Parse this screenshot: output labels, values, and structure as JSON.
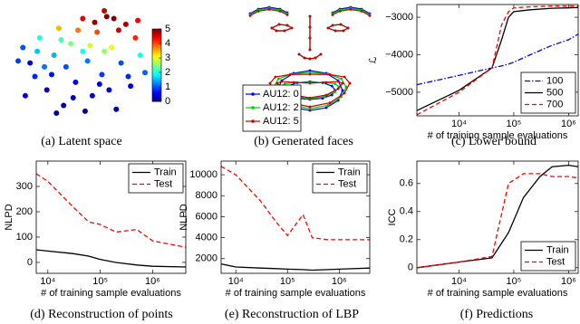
{
  "chart_data": [
    {
      "type": "scatter",
      "caption": "(a) Latent space",
      "colormap": "jet",
      "clim": [
        0,
        5
      ],
      "colorbar_ticks": [
        0,
        1,
        2,
        3,
        4,
        5
      ],
      "x": [
        -2.5,
        -2.2,
        -2.0,
        -1.8,
        -1.5,
        -1.2,
        -1.0,
        -0.8,
        -0.5,
        -0.3,
        0,
        0.2,
        0.4,
        0.6,
        0.8,
        1.0,
        1.2,
        1.4,
        1.6,
        1.8,
        2.0,
        2.2,
        2.4,
        -2.4,
        -1.6,
        -0.7,
        0.1,
        0.9,
        1.5,
        -0.2,
        0.5,
        -1.3,
        1.1,
        2.6,
        -0.9,
        0.3,
        -1.9,
        1.9,
        -0.4,
        0.7,
        -2.7,
        1.3,
        0.0,
        -1.1,
        2.3,
        0.9
      ],
      "y": [
        1.0,
        0.2,
        -0.5,
        1.5,
        -1.2,
        0.6,
        2.0,
        -2.0,
        1.2,
        -0.8,
        2.5,
        0.3,
        -1.5,
        1.8,
        -0.4,
        2.6,
        1.0,
        -2.2,
        0.2,
        2.2,
        -1.0,
        1.5,
        0.6,
        -1.5,
        0.0,
        0.0,
        -2.3,
        0.8,
        1.9,
        1.9,
        2.3,
        -0.4,
        -1.2,
        -0.3,
        1.4,
        1.1,
        0.8,
        -0.5,
        -1.6,
        -0.9,
        0.3,
        2.5,
        0.8,
        -2.4,
        2.4,
        2.9
      ],
      "c": [
        1,
        0.5,
        0.8,
        2,
        0.3,
        1.5,
        3.5,
        0.2,
        2.5,
        0.6,
        4.5,
        1.2,
        0.4,
        4,
        0.9,
        5,
        3,
        0.2,
        1,
        4.8,
        0.5,
        4.2,
        2,
        0.6,
        1.2,
        1,
        0.1,
        2.6,
        4.6,
        3.8,
        4.9,
        0.7,
        0.4,
        1.1,
        2.2,
        2.9,
        1.6,
        0.8,
        0.3,
        0.5,
        0.9,
        5,
        2.0,
        0.2,
        4.4,
        4.7
      ]
    },
    {
      "type": "diagram",
      "caption": "(b) Generated faces",
      "series": [
        {
          "name": "AU12: 0",
          "color": "#0000ff"
        },
        {
          "name": "AU12: 2",
          "color": "#00cc00"
        },
        {
          "name": "AU12: 5",
          "color": "#cc0000"
        }
      ]
    },
    {
      "type": "line",
      "caption": "(c) Lower bound",
      "xlabel": "# of training sample evaluations",
      "ylabel": "ℒ",
      "xscale": "log",
      "legend": "lower right",
      "xlim": [
        1700,
        1500000
      ],
      "xticks": [
        {
          "value": 10000,
          "label": "10⁴"
        },
        {
          "value": 100000,
          "label": "10⁵"
        },
        {
          "value": 1000000,
          "label": "10⁶"
        }
      ],
      "ylim": [
        -5630,
        -2660
      ],
      "yticks": [
        {
          "value": -5000,
          "label": "−5000"
        },
        {
          "value": -4000,
          "label": "−4000"
        },
        {
          "value": -3000,
          "label": "−3000"
        }
      ],
      "x": [
        1700,
        10000,
        40000,
        60000,
        80000,
        100000,
        200000,
        500000,
        1000000,
        1500000
      ],
      "series": [
        {
          "name": "100",
          "color": "#0000ff",
          "style": "dashdot",
          "values": [
            -4800,
            -4550,
            -4350,
            -4300,
            -4250,
            -4200,
            -4000,
            -3750,
            -3600,
            -3450
          ]
        },
        {
          "name": "500",
          "color": "#000000",
          "style": "solid",
          "values": [
            -5490,
            -4950,
            -4350,
            -3600,
            -3000,
            -2850,
            -2800,
            -2760,
            -2750,
            -2740
          ]
        },
        {
          "name": "700",
          "color": "#ff0000",
          "style": "dashed",
          "values": [
            -5600,
            -5000,
            -4350,
            -3200,
            -2850,
            -2750,
            -2720,
            -2700,
            -2700,
            -2700
          ]
        }
      ]
    },
    {
      "type": "line",
      "caption": "(d) Reconstruction of points",
      "xlabel": "# of training sample evaluations",
      "ylabel": "NLPD",
      "xscale": "log",
      "legend": "upper right",
      "xlim": [
        6000,
        4300000
      ],
      "xticks": [
        {
          "value": 10000,
          "label": "10⁴"
        },
        {
          "value": 100000,
          "label": "10⁵"
        },
        {
          "value": 1000000,
          "label": "10⁶"
        }
      ],
      "ylim": [
        -43,
        400
      ],
      "yticks": [
        0,
        100,
        200,
        300
      ],
      "x": [
        6000,
        10000,
        30000,
        60000,
        100000,
        200000,
        500000,
        1000000,
        4300000
      ],
      "series": [
        {
          "name": "Train",
          "color": "#000000",
          "style": "solid",
          "values": [
            50,
            45,
            35,
            25,
            12,
            0,
            -10,
            -15,
            -18
          ]
        },
        {
          "name": "Test",
          "color": "#ff0000",
          "style": "dashed",
          "values": [
            350,
            320,
            220,
            160,
            150,
            120,
            130,
            85,
            60
          ]
        }
      ]
    },
    {
      "type": "line",
      "caption": "(e) Reconstruction of LBP",
      "xlabel": "# of training sample evaluations",
      "ylabel": "NLPD",
      "xscale": "log",
      "legend": "upper right",
      "xlim": [
        5200,
        3900000
      ],
      "xticks": [
        {
          "value": 10000,
          "label": "10⁴"
        },
        {
          "value": 100000,
          "label": "10⁵"
        },
        {
          "value": 1000000,
          "label": "10⁶"
        }
      ],
      "ylim": [
        600,
        11300
      ],
      "yticks": [
        2000,
        4000,
        6000,
        8000,
        10000
      ],
      "x": [
        5200,
        10000,
        30000,
        60000,
        100000,
        200000,
        300000,
        600000,
        1000000,
        3900000
      ],
      "series": [
        {
          "name": "Train",
          "color": "#000000",
          "style": "solid",
          "values": [
            1500,
            1200,
            1100,
            1050,
            1000,
            950,
            900,
            950,
            1000,
            1100
          ]
        },
        {
          "name": "Test",
          "color": "#ff0000",
          "style": "dashed",
          "values": [
            10800,
            10000,
            7500,
            5500,
            4200,
            6200,
            4000,
            3800,
            3800,
            3800
          ]
        }
      ]
    },
    {
      "type": "line",
      "caption": "(f) Predictions",
      "xlabel": "# of training sample evaluations",
      "ylabel": "ICC",
      "xscale": "log",
      "legend": "lower right",
      "xlim": [
        1700,
        1500000
      ],
      "xticks": [
        {
          "value": 10000,
          "label": "10⁴"
        },
        {
          "value": 100000,
          "label": "10⁵"
        },
        {
          "value": 1000000,
          "label": "10⁶"
        }
      ],
      "ylim": [
        -0.04,
        0.76
      ],
      "yticks": [
        0,
        0.2,
        0.4,
        0.6
      ],
      "x": [
        1700,
        10000,
        40000,
        80000,
        150000,
        300000,
        500000,
        1000000,
        1500000
      ],
      "series": [
        {
          "name": "Train",
          "color": "#000000",
          "style": "solid",
          "values": [
            0,
            0.04,
            0.07,
            0.25,
            0.5,
            0.65,
            0.72,
            0.73,
            0.72
          ]
        },
        {
          "name": "Test",
          "color": "#ff0000",
          "style": "dashed",
          "values": [
            0,
            0.04,
            0.08,
            0.6,
            0.67,
            0.67,
            0.65,
            0.65,
            0.64
          ]
        }
      ]
    }
  ]
}
